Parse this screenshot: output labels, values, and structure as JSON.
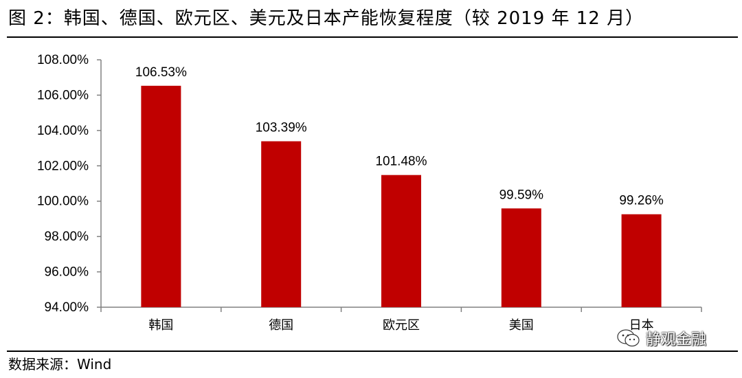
{
  "figure": {
    "title": "图 2：韩国、德国、欧元区、美元及日本产能恢复程度（较 2019 年 12 月）",
    "source": "数据来源：Wind",
    "watermark": "静观金融"
  },
  "chart_data": {
    "type": "bar",
    "title": "",
    "xlabel": "",
    "ylabel": "",
    "categories": [
      "韩国",
      "德国",
      "欧元区",
      "美国",
      "日本"
    ],
    "values": [
      106.53,
      103.39,
      101.48,
      99.59,
      99.26
    ],
    "data_labels": [
      "106.53%",
      "103.39%",
      "101.48%",
      "99.59%",
      "99.26%"
    ],
    "yticks": [
      94,
      96,
      98,
      100,
      102,
      104,
      106,
      108
    ],
    "ytick_labels": [
      "94.00%",
      "96.00%",
      "98.00%",
      "100.00%",
      "102.00%",
      "104.00%",
      "106.00%",
      "108.00%"
    ],
    "ylim": [
      94,
      108
    ],
    "grid": false,
    "legend": "none",
    "colors": {
      "bar": "#C00000",
      "axis": "#808080"
    }
  }
}
